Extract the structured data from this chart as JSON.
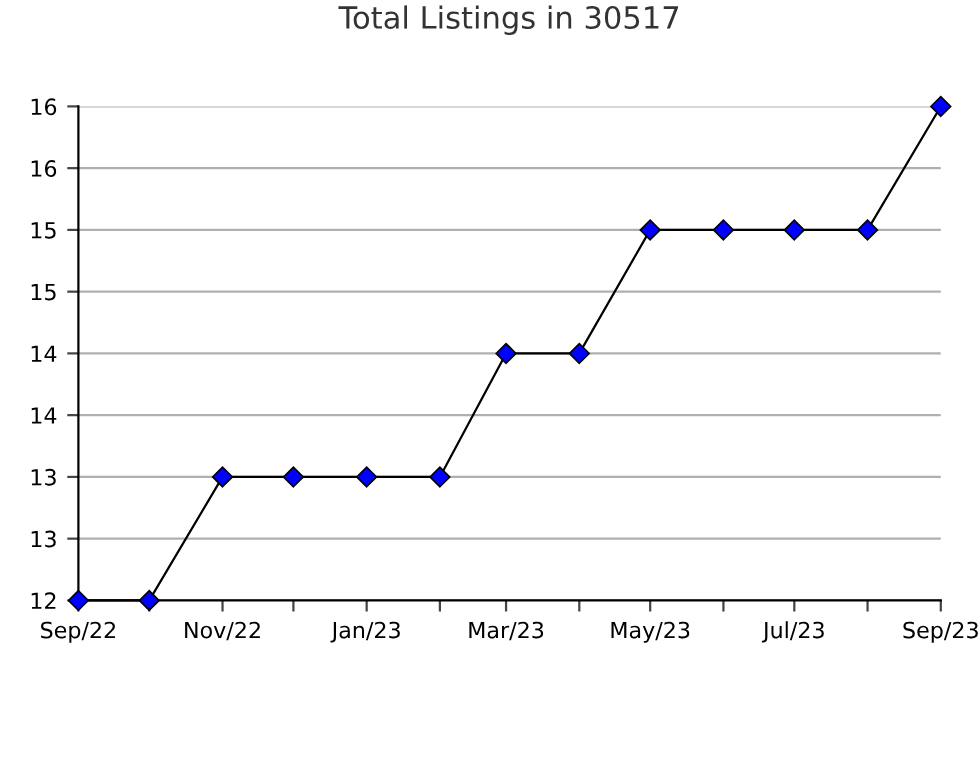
{
  "chart_data": {
    "type": "line",
    "title": "Total Listings in 30517",
    "x": [
      "2022-09",
      "2022-10",
      "2022-11",
      "2022-12",
      "2023-01",
      "2023-02",
      "2023-03",
      "2023-04",
      "2023-05",
      "2023-06",
      "2023-07",
      "2023-08",
      "2023-09"
    ],
    "series": [
      {
        "color": "#0000ff",
        "values": [
          12,
          12,
          13,
          13,
          13,
          13,
          14,
          14,
          15,
          15,
          15,
          15,
          16
        ]
      }
    ],
    "xlim": [
      "2022-09",
      "2023-09"
    ],
    "xticks": [
      {
        "value": "2022-09",
        "label": "Sep/22"
      },
      {
        "value": "2022-10",
        "label": null
      },
      {
        "value": "2022-11",
        "label": "Nov/22"
      },
      {
        "value": "2022-12",
        "label": null
      },
      {
        "value": "2023-01",
        "label": "Jan/23"
      },
      {
        "value": "2023-02",
        "label": null
      },
      {
        "value": "2023-03",
        "label": "Mar/23"
      },
      {
        "value": "2023-04",
        "label": null
      },
      {
        "value": "2023-05",
        "label": "May/23"
      },
      {
        "value": "2023-06",
        "label": null
      },
      {
        "value": "2023-07",
        "label": "Jul/23"
      },
      {
        "value": "2023-08",
        "label": null
      },
      {
        "value": "2023-09",
        "label": "Sep/23"
      }
    ],
    "ylim": [
      12,
      16
    ],
    "yticks": [
      12,
      {
        "value": 12.5,
        "label": "13"
      },
      13,
      {
        "value": 13.5,
        "label": "14"
      },
      14,
      {
        "value": 14.5,
        "label": "15"
      },
      15,
      {
        "value": 15.5,
        "label": "16"
      },
      16
    ],
    "grid": "y",
    "marker": "diamond",
    "line_style": "solid"
  }
}
